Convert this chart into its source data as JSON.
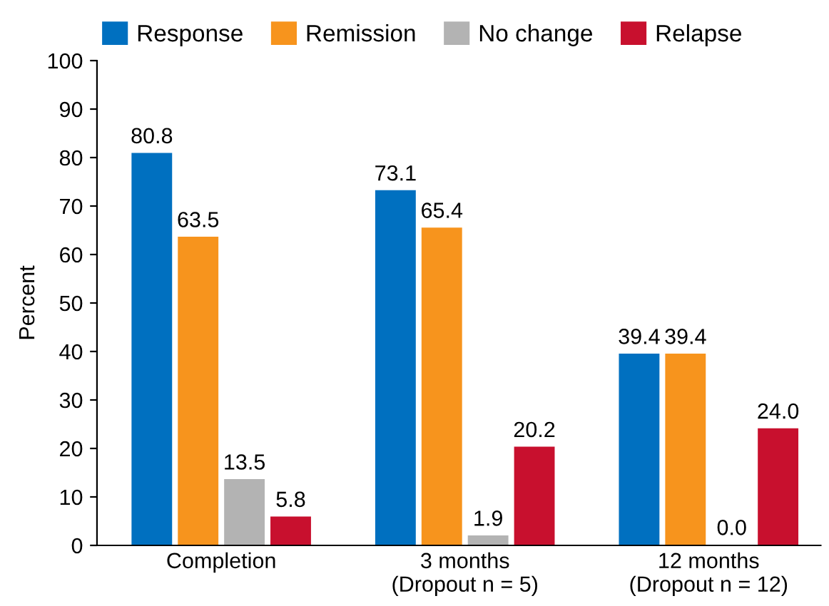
{
  "chart_data": {
    "type": "bar",
    "ylabel": "Percent",
    "categories": [
      "Completion",
      "3 months\n(Dropout n = 5)",
      "12 months\n(Dropout n = 12)"
    ],
    "series": [
      {
        "name": "Response",
        "color": "#0070c0",
        "values": [
          80.8,
          73.1,
          39.4
        ],
        "value_labels": [
          "80.8",
          "73.1",
          "39.4"
        ]
      },
      {
        "name": "Remission",
        "color": "#f7941d",
        "values": [
          63.5,
          65.4,
          39.4
        ],
        "value_labels": [
          "63.5",
          "65.4",
          "39.4"
        ]
      },
      {
        "name": "No change",
        "color": "#b3b3b3",
        "values": [
          13.5,
          1.9,
          0.0
        ],
        "value_labels": [
          "13.5",
          "1.9",
          "0.0"
        ]
      },
      {
        "name": "Relapse",
        "color": "#c8102e",
        "values": [
          5.8,
          20.2,
          24.0
        ],
        "value_labels": [
          "5.8",
          "20.2",
          "24.0"
        ]
      }
    ],
    "ylim": [
      0,
      100
    ],
    "yticks": [
      0,
      10,
      20,
      30,
      40,
      50,
      60,
      70,
      80,
      90,
      100
    ],
    "grid": false,
    "legend": "top"
  }
}
